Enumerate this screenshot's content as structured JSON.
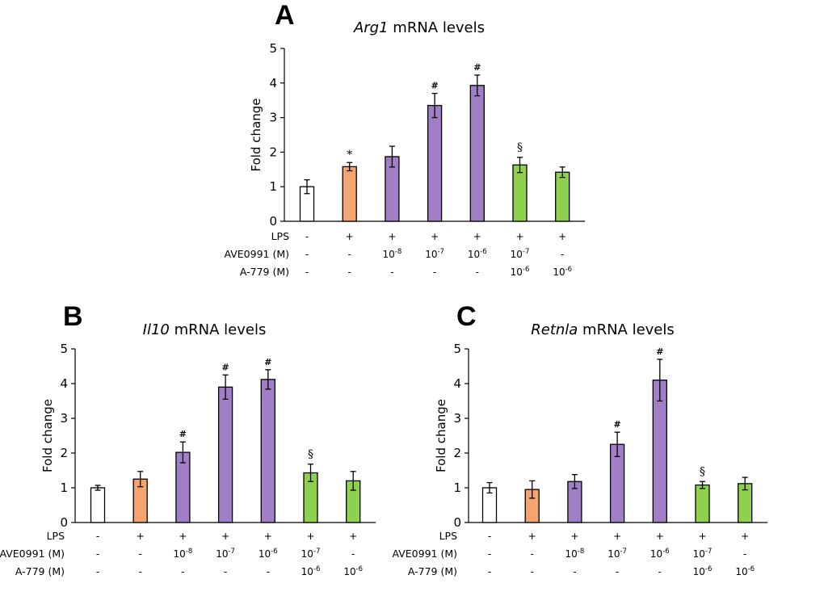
{
  "figure": {
    "conditions": {
      "row_labels": [
        "LPS",
        "AVE0991 (M)",
        "A-779 (M)"
      ],
      "LPS": [
        "-",
        "+",
        "+",
        "+",
        "+",
        "+",
        "+"
      ],
      "AVE0991": [
        {
          "text": "-"
        },
        {
          "text": "-"
        },
        {
          "base": "10",
          "exp": "-8"
        },
        {
          "base": "10",
          "exp": "-7"
        },
        {
          "base": "10",
          "exp": "-6"
        },
        {
          "base": "10",
          "exp": "-7"
        },
        {
          "text": "-"
        }
      ],
      "A779": [
        {
          "text": "-"
        },
        {
          "text": "-"
        },
        {
          "text": "-"
        },
        {
          "text": "-"
        },
        {
          "text": "-"
        },
        {
          "base": "10",
          "exp": "-6"
        },
        {
          "base": "10",
          "exp": "-6"
        }
      ]
    },
    "bar_colors": [
      "#ffffff",
      "#f4a46f",
      "#a17fc6",
      "#a17fc6",
      "#a17fc6",
      "#8fd14f",
      "#8fd14f"
    ],
    "ylabel": "Fold change",
    "yticks": [
      "0",
      "1",
      "2",
      "3",
      "4",
      "5"
    ]
  },
  "chart_data": [
    {
      "panel": "A",
      "type": "bar",
      "title_gene": "Arg1",
      "title_rest": " mRNA levels",
      "ylabel": "Fold change",
      "ylim": [
        0,
        5
      ],
      "values": [
        1.0,
        1.58,
        1.87,
        3.35,
        3.93,
        1.63,
        1.42
      ],
      "errors": [
        0.2,
        0.12,
        0.3,
        0.35,
        0.3,
        0.22,
        0.15
      ],
      "annotations": [
        "",
        "*",
        "",
        "#",
        "#",
        "§",
        ""
      ]
    },
    {
      "panel": "B",
      "type": "bar",
      "title_gene": "Il10",
      "title_rest": " mRNA levels",
      "ylabel": "Fold change",
      "ylim": [
        0,
        5
      ],
      "values": [
        1.0,
        1.25,
        2.02,
        3.9,
        4.12,
        1.43,
        1.2
      ],
      "errors": [
        0.07,
        0.22,
        0.3,
        0.35,
        0.28,
        0.25,
        0.27
      ],
      "annotations": [
        "",
        "",
        "#",
        "#",
        "#",
        "§",
        ""
      ]
    },
    {
      "panel": "C",
      "type": "bar",
      "title_gene": "Retnla",
      "title_rest": " mRNA levels",
      "ylabel": "Fold change",
      "ylim": [
        0,
        5
      ],
      "values": [
        1.0,
        0.95,
        1.18,
        2.25,
        4.1,
        1.08,
        1.12
      ],
      "errors": [
        0.15,
        0.25,
        0.2,
        0.35,
        0.6,
        0.1,
        0.18
      ],
      "annotations": [
        "",
        "",
        "",
        "#",
        "#",
        "§",
        ""
      ]
    }
  ]
}
